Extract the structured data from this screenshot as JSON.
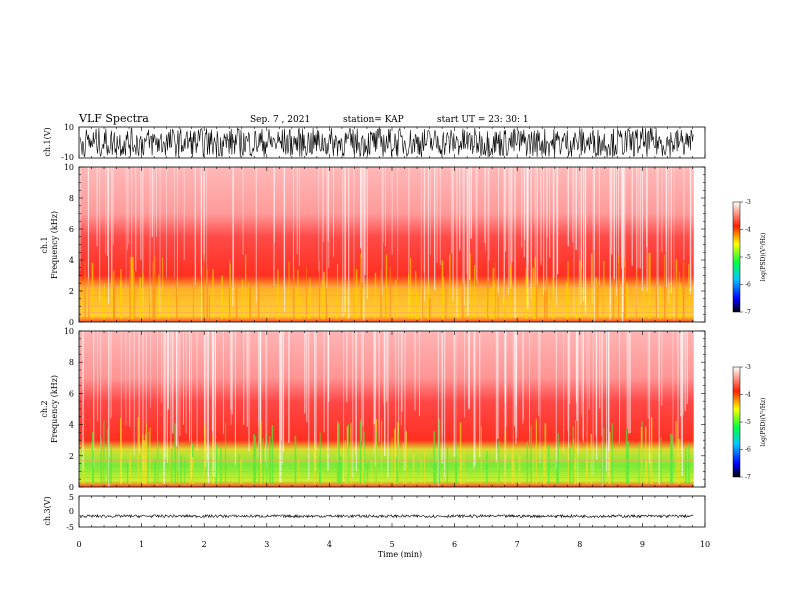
{
  "header": {
    "title": "VLF Spectra",
    "date": "Sep. 7 , 2021",
    "station": "station= KAP",
    "start": "start  UT =   23: 30: 1"
  },
  "colors": {
    "waveform": "#000000",
    "spec_low": "#ffffff",
    "spec_mid": "#ff2020",
    "spec_high": "#ffd400",
    "spec_hot": "#22ee22"
  },
  "chart_data": [
    {
      "type": "line",
      "name": "ch1-waveform",
      "ylabel": "ch.1(V)",
      "ylim": [
        -10,
        10
      ],
      "yticks": [
        "10",
        "-10"
      ],
      "x_range_min": [
        0,
        9.82
      ],
      "description_level": "dense oscillation spanning most of ±10 V"
    },
    {
      "type": "heatmap",
      "name": "ch1-spectrogram",
      "ylabel": "ch.1\nFrequency (kHz)",
      "ylabel_lines": [
        "ch.1",
        "Frequency  (kHz)"
      ],
      "ylim": [
        0,
        10
      ],
      "yticks": [
        "0",
        "2",
        "4",
        "6",
        "8",
        "10"
      ],
      "x_range_min": [
        0,
        9.82
      ],
      "colorbar": {
        "label": "log(PSD)(V²/Hz)",
        "ticks": [
          "-3",
          "-4",
          "-5",
          "-6",
          "-7"
        ],
        "range": [
          -7,
          -3
        ]
      },
      "bands_khz": [
        {
          "from": 0,
          "to": 2.5,
          "level": "yellow"
        },
        {
          "from": 2.5,
          "to": 5.5,
          "level": "red"
        },
        {
          "from": 5.5,
          "to": 10,
          "level": "light-red"
        }
      ]
    },
    {
      "type": "heatmap",
      "name": "ch2-spectrogram",
      "ylabel_lines": [
        "ch.2",
        "Frequency  (kHz)"
      ],
      "ylim": [
        0,
        10
      ],
      "yticks": [
        "0",
        "2",
        "4",
        "6",
        "8",
        "10"
      ],
      "x_range_min": [
        0,
        9.82
      ],
      "colorbar": {
        "label": "log(PSD)(V²/Hz)",
        "ticks": [
          "-3",
          "-4",
          "-5",
          "-6",
          "-7"
        ],
        "range": [
          -7,
          -3
        ]
      },
      "bands_khz": [
        {
          "from": 0,
          "to": 2.8,
          "level": "green-yellow"
        },
        {
          "from": 2.8,
          "to": 5.5,
          "level": "red"
        },
        {
          "from": 5.5,
          "to": 10,
          "level": "light-red"
        }
      ]
    },
    {
      "type": "line",
      "name": "ch3-waveform",
      "ylabel": "ch.3(V)",
      "ylim": [
        -5,
        5
      ],
      "yticks": [
        "5",
        "0",
        "-5"
      ],
      "x_range_min": [
        0,
        9.82
      ],
      "level_v": -1.5
    }
  ],
  "xaxis": {
    "label": "Time  (min)",
    "ticks": [
      "0",
      "1",
      "2",
      "3",
      "4",
      "5",
      "6",
      "7",
      "8",
      "9",
      "10"
    ],
    "range": [
      0,
      10
    ]
  }
}
